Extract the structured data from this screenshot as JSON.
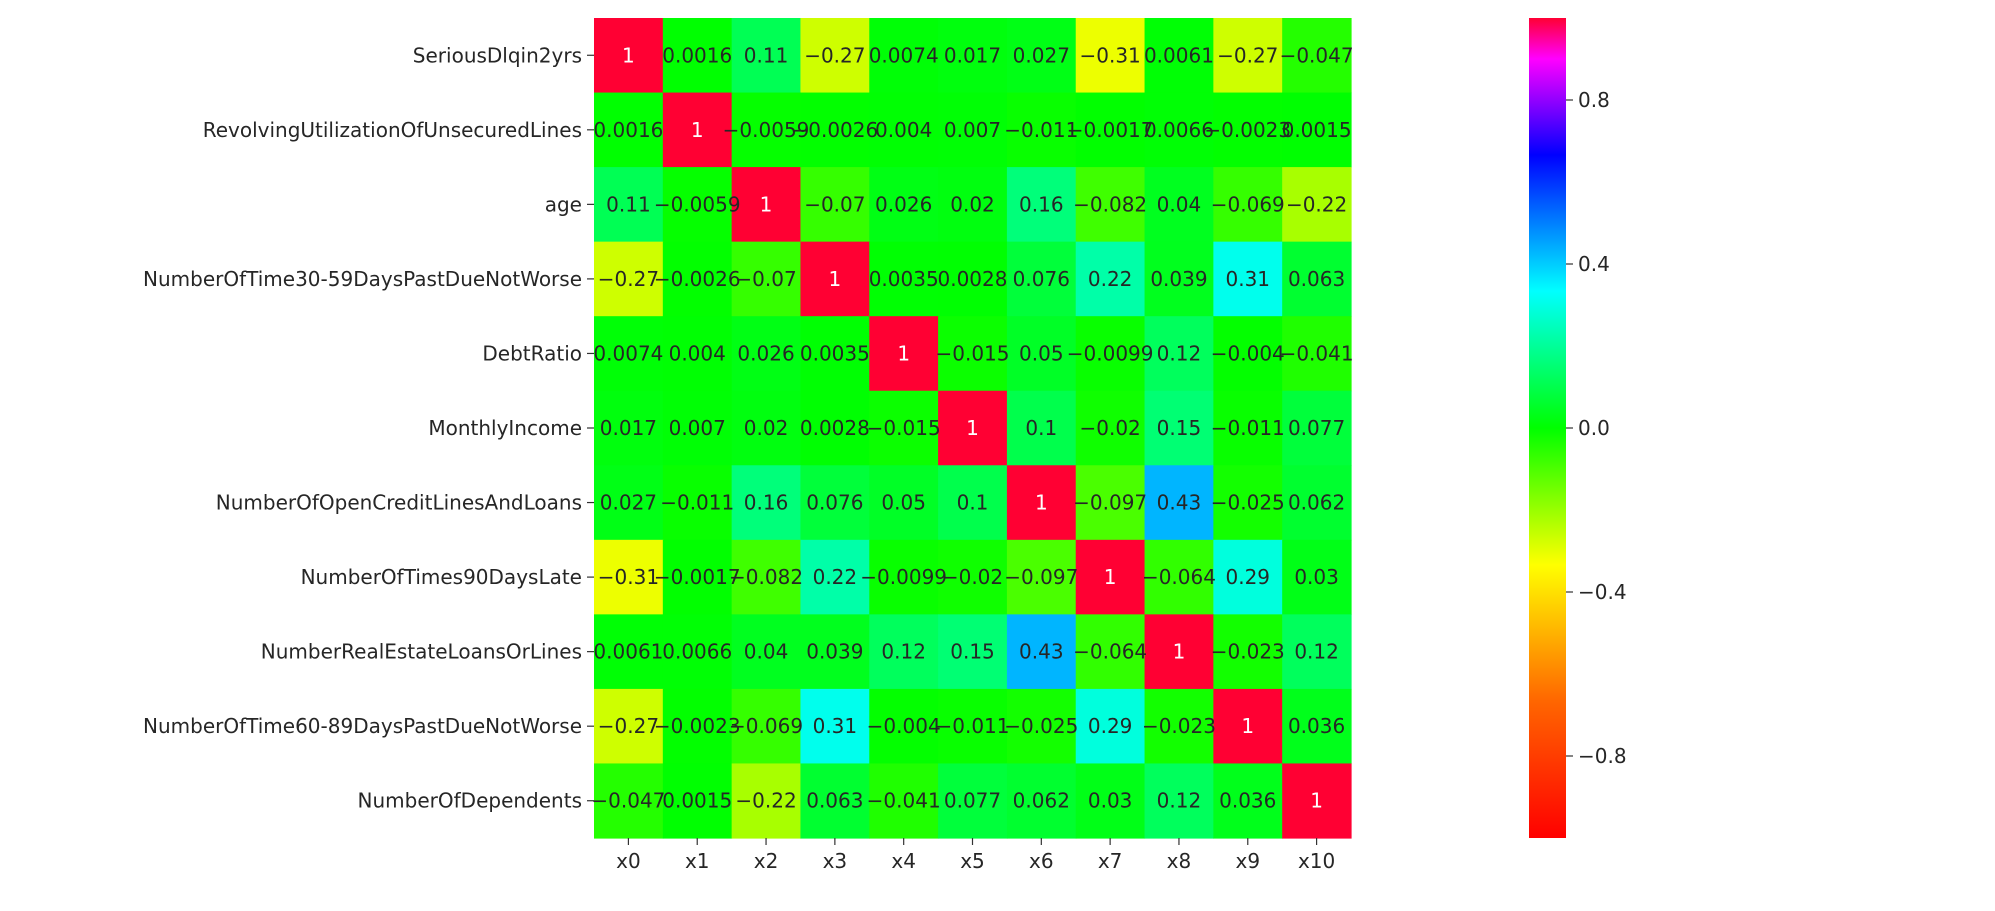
{
  "chart_data": {
    "type": "heatmap",
    "rows": [
      "SeriousDlqin2yrs",
      "RevolvingUtilizationOfUnsecuredLines",
      "age",
      "NumberOfTime30-59DaysPastDueNotWorse",
      "DebtRatio",
      "MonthlyIncome",
      "NumberOfOpenCreditLinesAndLoans",
      "NumberOfTimes90DaysLate",
      "NumberRealEstateLoansOrLines",
      "NumberOfTime60-89DaysPastDueNotWorse",
      "NumberOfDependents"
    ],
    "columns": [
      "x0",
      "x1",
      "x2",
      "x3",
      "x4",
      "x5",
      "x6",
      "x7",
      "x8",
      "x9",
      "x10"
    ],
    "values": [
      [
        1,
        0.0016,
        0.11,
        -0.27,
        0.0074,
        0.017,
        0.027,
        -0.31,
        0.0061,
        -0.27,
        -0.047
      ],
      [
        0.0016,
        1,
        -0.0059,
        -0.0026,
        0.004,
        0.007,
        -0.011,
        -0.0017,
        0.0066,
        -0.0023,
        0.0015
      ],
      [
        0.11,
        -0.0059,
        1,
        -0.07,
        0.026,
        0.02,
        0.16,
        -0.082,
        0.04,
        -0.069,
        -0.22
      ],
      [
        -0.27,
        -0.0026,
        -0.07,
        1,
        0.0035,
        0.0028,
        0.076,
        0.22,
        0.039,
        0.31,
        0.063
      ],
      [
        0.0074,
        0.004,
        0.026,
        0.0035,
        1,
        -0.015,
        0.05,
        -0.0099,
        0.12,
        -0.004,
        -0.041
      ],
      [
        0.017,
        0.007,
        0.02,
        0.0028,
        -0.015,
        1,
        0.1,
        -0.02,
        0.15,
        -0.011,
        0.077
      ],
      [
        0.027,
        -0.011,
        0.16,
        0.076,
        0.05,
        0.1,
        1,
        -0.097,
        0.43,
        -0.025,
        0.062
      ],
      [
        -0.31,
        -0.0017,
        -0.082,
        0.22,
        -0.0099,
        -0.02,
        -0.097,
        1,
        -0.064,
        0.29,
        0.03
      ],
      [
        0.0061,
        0.0066,
        0.04,
        0.039,
        0.12,
        0.15,
        0.43,
        -0.064,
        1,
        -0.023,
        0.12
      ],
      [
        -0.27,
        -0.0023,
        -0.069,
        0.31,
        -0.004,
        -0.011,
        -0.025,
        0.29,
        -0.023,
        1,
        0.036
      ],
      [
        -0.047,
        0.0015,
        -0.22,
        0.063,
        -0.041,
        0.077,
        0.062,
        0.03,
        0.12,
        0.036,
        1
      ]
    ],
    "vmin": -1,
    "vmax": 1,
    "colormap": "gist_rainbow",
    "colorbar_ticks": [
      "0.8",
      "0.4",
      "0.0",
      "−0.4",
      "−0.8"
    ],
    "colorbar_tick_values": [
      0.8,
      0.4,
      0.0,
      -0.4,
      -0.8
    ],
    "title": "",
    "xlabel": "",
    "ylabel": ""
  }
}
